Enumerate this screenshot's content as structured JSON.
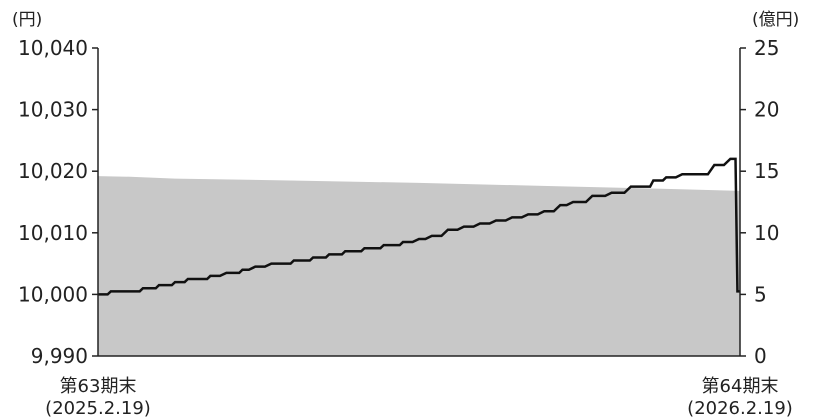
{
  "chart_data": {
    "type": "area",
    "x_labels": [
      {
        "line1": "第63期末",
        "line2": "(2025.2.19)"
      },
      {
        "line1": "第64期末",
        "line2": "(2026.2.19)"
      }
    ],
    "y_left": {
      "unit": "(円)",
      "min": 9990,
      "max": 10040,
      "ticks": [
        9990,
        10000,
        10010,
        10020,
        10030,
        10040
      ],
      "tick_labels": [
        "9,990",
        "10,000",
        "10,010",
        "10,020",
        "10,030",
        "10,040"
      ]
    },
    "y_right": {
      "unit": "(億円)",
      "min": 0,
      "max": 25,
      "ticks": [
        0,
        5,
        10,
        15,
        20,
        25
      ],
      "tick_labels": [
        "0",
        "5",
        "10",
        "15",
        "20",
        "25"
      ]
    },
    "series": [
      {
        "type": "area",
        "axis": "right",
        "color": "#c8c8c8",
        "x": [
          0.0,
          0.05,
          0.12,
          0.3,
          0.5,
          0.7,
          0.9,
          1.0
        ],
        "values": [
          14.6,
          14.55,
          14.4,
          14.25,
          14.05,
          13.8,
          13.55,
          13.4
        ]
      },
      {
        "type": "line",
        "axis": "left",
        "color": "#111111",
        "x": [
          0.0,
          0.015,
          0.02,
          0.065,
          0.07,
          0.09,
          0.095,
          0.115,
          0.12,
          0.135,
          0.14,
          0.17,
          0.175,
          0.19,
          0.2,
          0.22,
          0.225,
          0.235,
          0.245,
          0.26,
          0.27,
          0.3,
          0.305,
          0.33,
          0.335,
          0.355,
          0.36,
          0.38,
          0.385,
          0.41,
          0.415,
          0.44,
          0.445,
          0.47,
          0.475,
          0.49,
          0.5,
          0.51,
          0.52,
          0.535,
          0.545,
          0.56,
          0.57,
          0.585,
          0.595,
          0.61,
          0.62,
          0.635,
          0.645,
          0.66,
          0.67,
          0.685,
          0.695,
          0.71,
          0.72,
          0.73,
          0.74,
          0.76,
          0.77,
          0.79,
          0.8,
          0.82,
          0.83,
          0.86,
          0.865,
          0.88,
          0.885,
          0.9,
          0.91,
          0.95,
          0.96,
          0.975,
          0.985,
          0.993,
          0.996,
          1.0
        ],
        "values": [
          10000.0,
          10000.0,
          10000.5,
          10000.5,
          10001.0,
          10001.0,
          10001.5,
          10001.5,
          10002.0,
          10002.0,
          10002.5,
          10002.5,
          10003.0,
          10003.0,
          10003.5,
          10003.5,
          10004.0,
          10004.0,
          10004.5,
          10004.5,
          10005.0,
          10005.0,
          10005.5,
          10005.5,
          10006.0,
          10006.0,
          10006.5,
          10006.5,
          10007.0,
          10007.0,
          10007.5,
          10007.5,
          10008.0,
          10008.0,
          10008.5,
          10008.5,
          10009.0,
          10009.0,
          10009.5,
          10009.5,
          10010.5,
          10010.5,
          10011.0,
          10011.0,
          10011.5,
          10011.5,
          10012.0,
          10012.0,
          10012.5,
          10012.5,
          10013.0,
          10013.0,
          10013.5,
          10013.5,
          10014.5,
          10014.5,
          10015.0,
          10015.0,
          10016.0,
          10016.0,
          10016.5,
          10016.5,
          10017.5,
          10017.5,
          10018.5,
          10018.5,
          10019.0,
          10019.0,
          10019.5,
          10019.5,
          10021.0,
          10021.0,
          10022.0,
          10022.0,
          10000.5,
          10000.5
        ]
      }
    ],
    "grid": false
  }
}
